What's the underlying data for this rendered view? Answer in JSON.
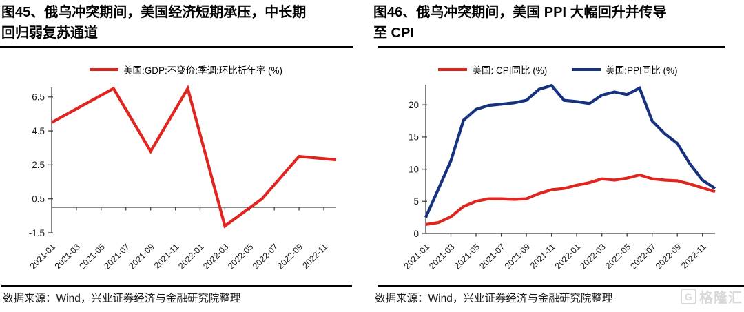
{
  "panels": [
    {
      "title_lines": [
        "图45、俄乌冲突期间，美国经济短期承压，中长期",
        "回归弱复苏通道"
      ],
      "legend": [
        {
          "id": "gdp",
          "label": "美国:GDP:不变价:季调:环比折年率 (%)",
          "color": "#e02420"
        }
      ],
      "source": "数据来源：Wind，兴业证券经济与金融研究院整理"
    },
    {
      "title_lines": [
        "图46、俄乌冲突期间，美国 PPI 大幅回升并传导",
        "至 CPI"
      ],
      "legend": [
        {
          "id": "cpi",
          "label": "美国: CPI同比 (%)",
          "color": "#e02420"
        },
        {
          "id": "ppi",
          "label": "美国:PPI同比 (%)",
          "color": "#16317d"
        }
      ],
      "source": "数据来源：Wind，兴业证券经济与金融研究院整理"
    }
  ],
  "watermark": {
    "text": "格隆汇",
    "icon_letter": "G",
    "color": "#d9d9d9"
  },
  "chart_data": [
    {
      "type": "line",
      "title": "图45、俄乌冲突期间，美国经济短期承压，中长期回归弱复苏通道",
      "xlabel": "",
      "ylabel": "",
      "grid": false,
      "legend_position": "top",
      "zero_baseline": true,
      "ylim": [
        -1.5,
        7.2
      ],
      "y_ticks": [
        6.5,
        4.5,
        2.5,
        0.5,
        -1.5
      ],
      "x_range": [
        "2021-01",
        "2022-12"
      ],
      "x_tick_labels": [
        "2021-01",
        "2021-03",
        "2021-05",
        "2021-07",
        "2021-09",
        "2021-11",
        "2022-01",
        "2022-03",
        "2022-05",
        "2022-07",
        "2022-09",
        "2022-11"
      ],
      "series": [
        {
          "id": "gdp",
          "name": "美国:GDP:不变价:季调:环比折年率 (%)",
          "color": "#e02420",
          "points": [
            [
              "2021-01",
              5.0
            ],
            [
              "2021-06",
              7.0
            ],
            [
              "2021-09",
              3.3
            ],
            [
              "2021-12",
              7.0
            ],
            [
              "2022-03",
              -1.1
            ],
            [
              "2022-06",
              0.5
            ],
            [
              "2022-09",
              3.0
            ],
            [
              "2022-12",
              2.8
            ]
          ]
        }
      ]
    },
    {
      "type": "line",
      "title": "图46、俄乌冲突期间，美国 PPI 大幅回升并传导至 CPI",
      "xlabel": "",
      "ylabel": "",
      "grid": false,
      "legend_position": "top",
      "ylim": [
        0,
        23
      ],
      "y_ticks": [
        0,
        5,
        10,
        15,
        20
      ],
      "x_range": [
        "2021-01",
        "2022-12"
      ],
      "x_tick_labels": [
        "2021-01",
        "2021-03",
        "2021-05",
        "2021-07",
        "2021-09",
        "2021-11",
        "2022-01",
        "2022-03",
        "2022-05",
        "2022-07",
        "2022-09",
        "2022-11"
      ],
      "series": [
        {
          "id": "cpi",
          "name": "美国: CPI同比 (%)",
          "color": "#e02420",
          "x_start": "2021-01",
          "values": [
            1.4,
            1.7,
            2.6,
            4.2,
            5.0,
            5.4,
            5.4,
            5.3,
            5.4,
            6.2,
            6.8,
            7.0,
            7.5,
            7.9,
            8.5,
            8.3,
            8.6,
            9.1,
            8.5,
            8.3,
            8.2,
            7.7,
            7.1,
            6.5
          ]
        },
        {
          "id": "ppi",
          "name": "美国:PPI同比 (%)",
          "color": "#16317d",
          "x_start": "2021-01",
          "values": [
            2.5,
            6.9,
            11.3,
            17.6,
            19.3,
            19.9,
            20.1,
            20.3,
            20.7,
            22.4,
            23.0,
            20.7,
            20.5,
            20.2,
            21.5,
            22.0,
            21.6,
            22.6,
            17.5,
            15.5,
            14.0,
            10.8,
            8.3,
            7.0
          ]
        }
      ]
    }
  ]
}
